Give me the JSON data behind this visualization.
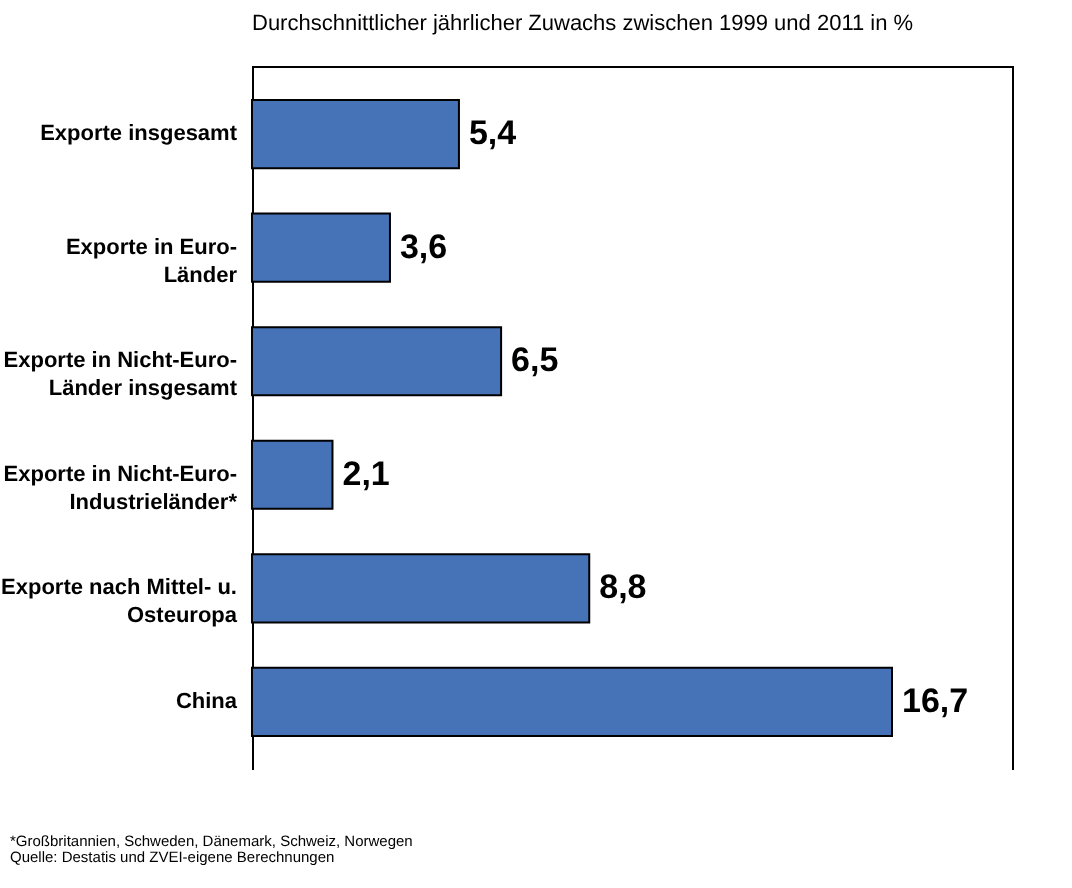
{
  "chart_data": {
    "type": "bar",
    "orientation": "horizontal",
    "title": "Durchschnittlicher jährlicher Zuwachs zwischen 1999 und 2011 in %",
    "categories": [
      "Exporte insgesamt",
      "Exporte in Euro-Länder",
      "Exporte in Nicht-Euro-Länder insgesamt",
      "Exporte in Nicht-Euro-Industrieländer*",
      "Exporte nach Mittel- u. Osteuropa",
      "China"
    ],
    "values": [
      5.4,
      3.6,
      6.5,
      2.1,
      8.8,
      16.7
    ],
    "value_labels": [
      "5,4",
      "3,6",
      "6,5",
      "2,1",
      "8,8",
      "16,7"
    ],
    "color": "#4672b8",
    "tick_labels": "y",
    "annotations": [
      "*Großbritannien, Schweden, Dänemark, Schweiz, Norwegen",
      "Quelle: Destatis und ZVEI-eigene Berechnungen"
    ]
  }
}
